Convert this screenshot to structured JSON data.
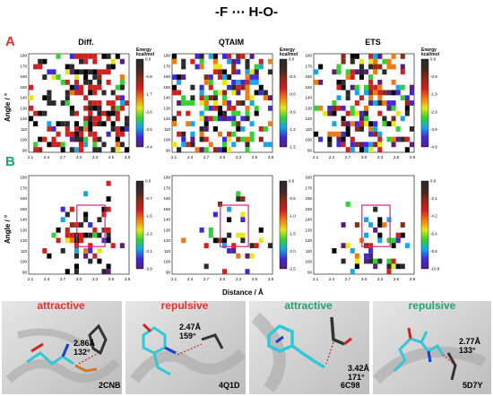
{
  "figure": {
    "title": "-F ⋯ H-O-",
    "row_labels": [
      {
        "text": "A",
        "color": "#e8302a"
      },
      {
        "text": "B",
        "color": "#1ea56a"
      }
    ],
    "y_axis_label": "Angle / °",
    "x_axis_label": "Distance / Å",
    "colorbar_title_line1": "Energy",
    "colorbar_title_line2": "kcal/mol",
    "x_ticks": [
      "2.1",
      "2.4",
      "2.7",
      "3.0",
      "3.3",
      "3.6",
      "3.9"
    ],
    "y_ticks": [
      "180",
      "170",
      "160",
      "150",
      "140",
      "130",
      "120",
      "110",
      "100",
      "90"
    ]
  },
  "chart_data": [
    {
      "type": "heatmap",
      "title": "Diff.",
      "row": "A",
      "xlim": [
        2.1,
        3.9
      ],
      "ylim": [
        90,
        180
      ],
      "colorbar_ticks": [
        "0.0",
        "-0.8",
        "-1.7",
        "-2.6",
        "-3.5",
        "-4.4"
      ]
    },
    {
      "type": "heatmap",
      "title": "QTAIM",
      "row": "A",
      "xlim": [
        2.1,
        3.9
      ],
      "ylim": [
        90,
        180
      ],
      "colorbar_ticks": [
        "0.0",
        "-0.3",
        "-0.6",
        "-0.9",
        "-1.2",
        "-1.5"
      ]
    },
    {
      "type": "heatmap",
      "title": "ETS",
      "row": "A",
      "xlim": [
        2.1,
        3.9
      ],
      "ylim": [
        90,
        180
      ],
      "colorbar_ticks": [
        "0.0",
        "-0.9",
        "-1.9",
        "-2.9",
        "-3.9",
        "-4.9"
      ]
    },
    {
      "type": "heatmap",
      "title": "",
      "row": "B",
      "xlim": [
        2.1,
        3.9
      ],
      "ylim": [
        90,
        180
      ],
      "colorbar_ticks": [
        "0.0",
        "-0.7",
        "-1.5",
        "-2.3",
        "-3.1",
        "-3.9"
      ]
    },
    {
      "type": "heatmap",
      "title": "",
      "row": "B",
      "xlim": [
        2.1,
        3.9
      ],
      "ylim": [
        90,
        180
      ],
      "colorbar_ticks": [
        "0.0",
        "-0.5",
        "-1.0",
        "-1.5",
        "-2.0",
        "-2.5"
      ]
    },
    {
      "type": "heatmap",
      "title": "",
      "row": "B",
      "xlim": [
        2.1,
        3.9
      ],
      "ylim": [
        90,
        180
      ],
      "colorbar_ticks": [
        "0.0",
        "-2.1",
        "-4.2",
        "-6.4",
        "-8.6",
        "-10.8"
      ]
    }
  ],
  "structures": [
    {
      "label": "attractive",
      "color": "#e8302a",
      "distance": "2.86Å",
      "angle": "132°",
      "pdb": "2CNB"
    },
    {
      "label": "repulsive",
      "color": "#e8302a",
      "distance": "2.47Å",
      "angle": "159°",
      "pdb": "4Q1D"
    },
    {
      "label": "attractive",
      "color": "#1ea56a",
      "distance": "3.42Å",
      "angle": "171°",
      "pdb": "6C98"
    },
    {
      "label": "repulsive",
      "color": "#1ea56a",
      "distance": "2.77Å",
      "angle": "133°",
      "pdb": "5D7Y"
    }
  ]
}
